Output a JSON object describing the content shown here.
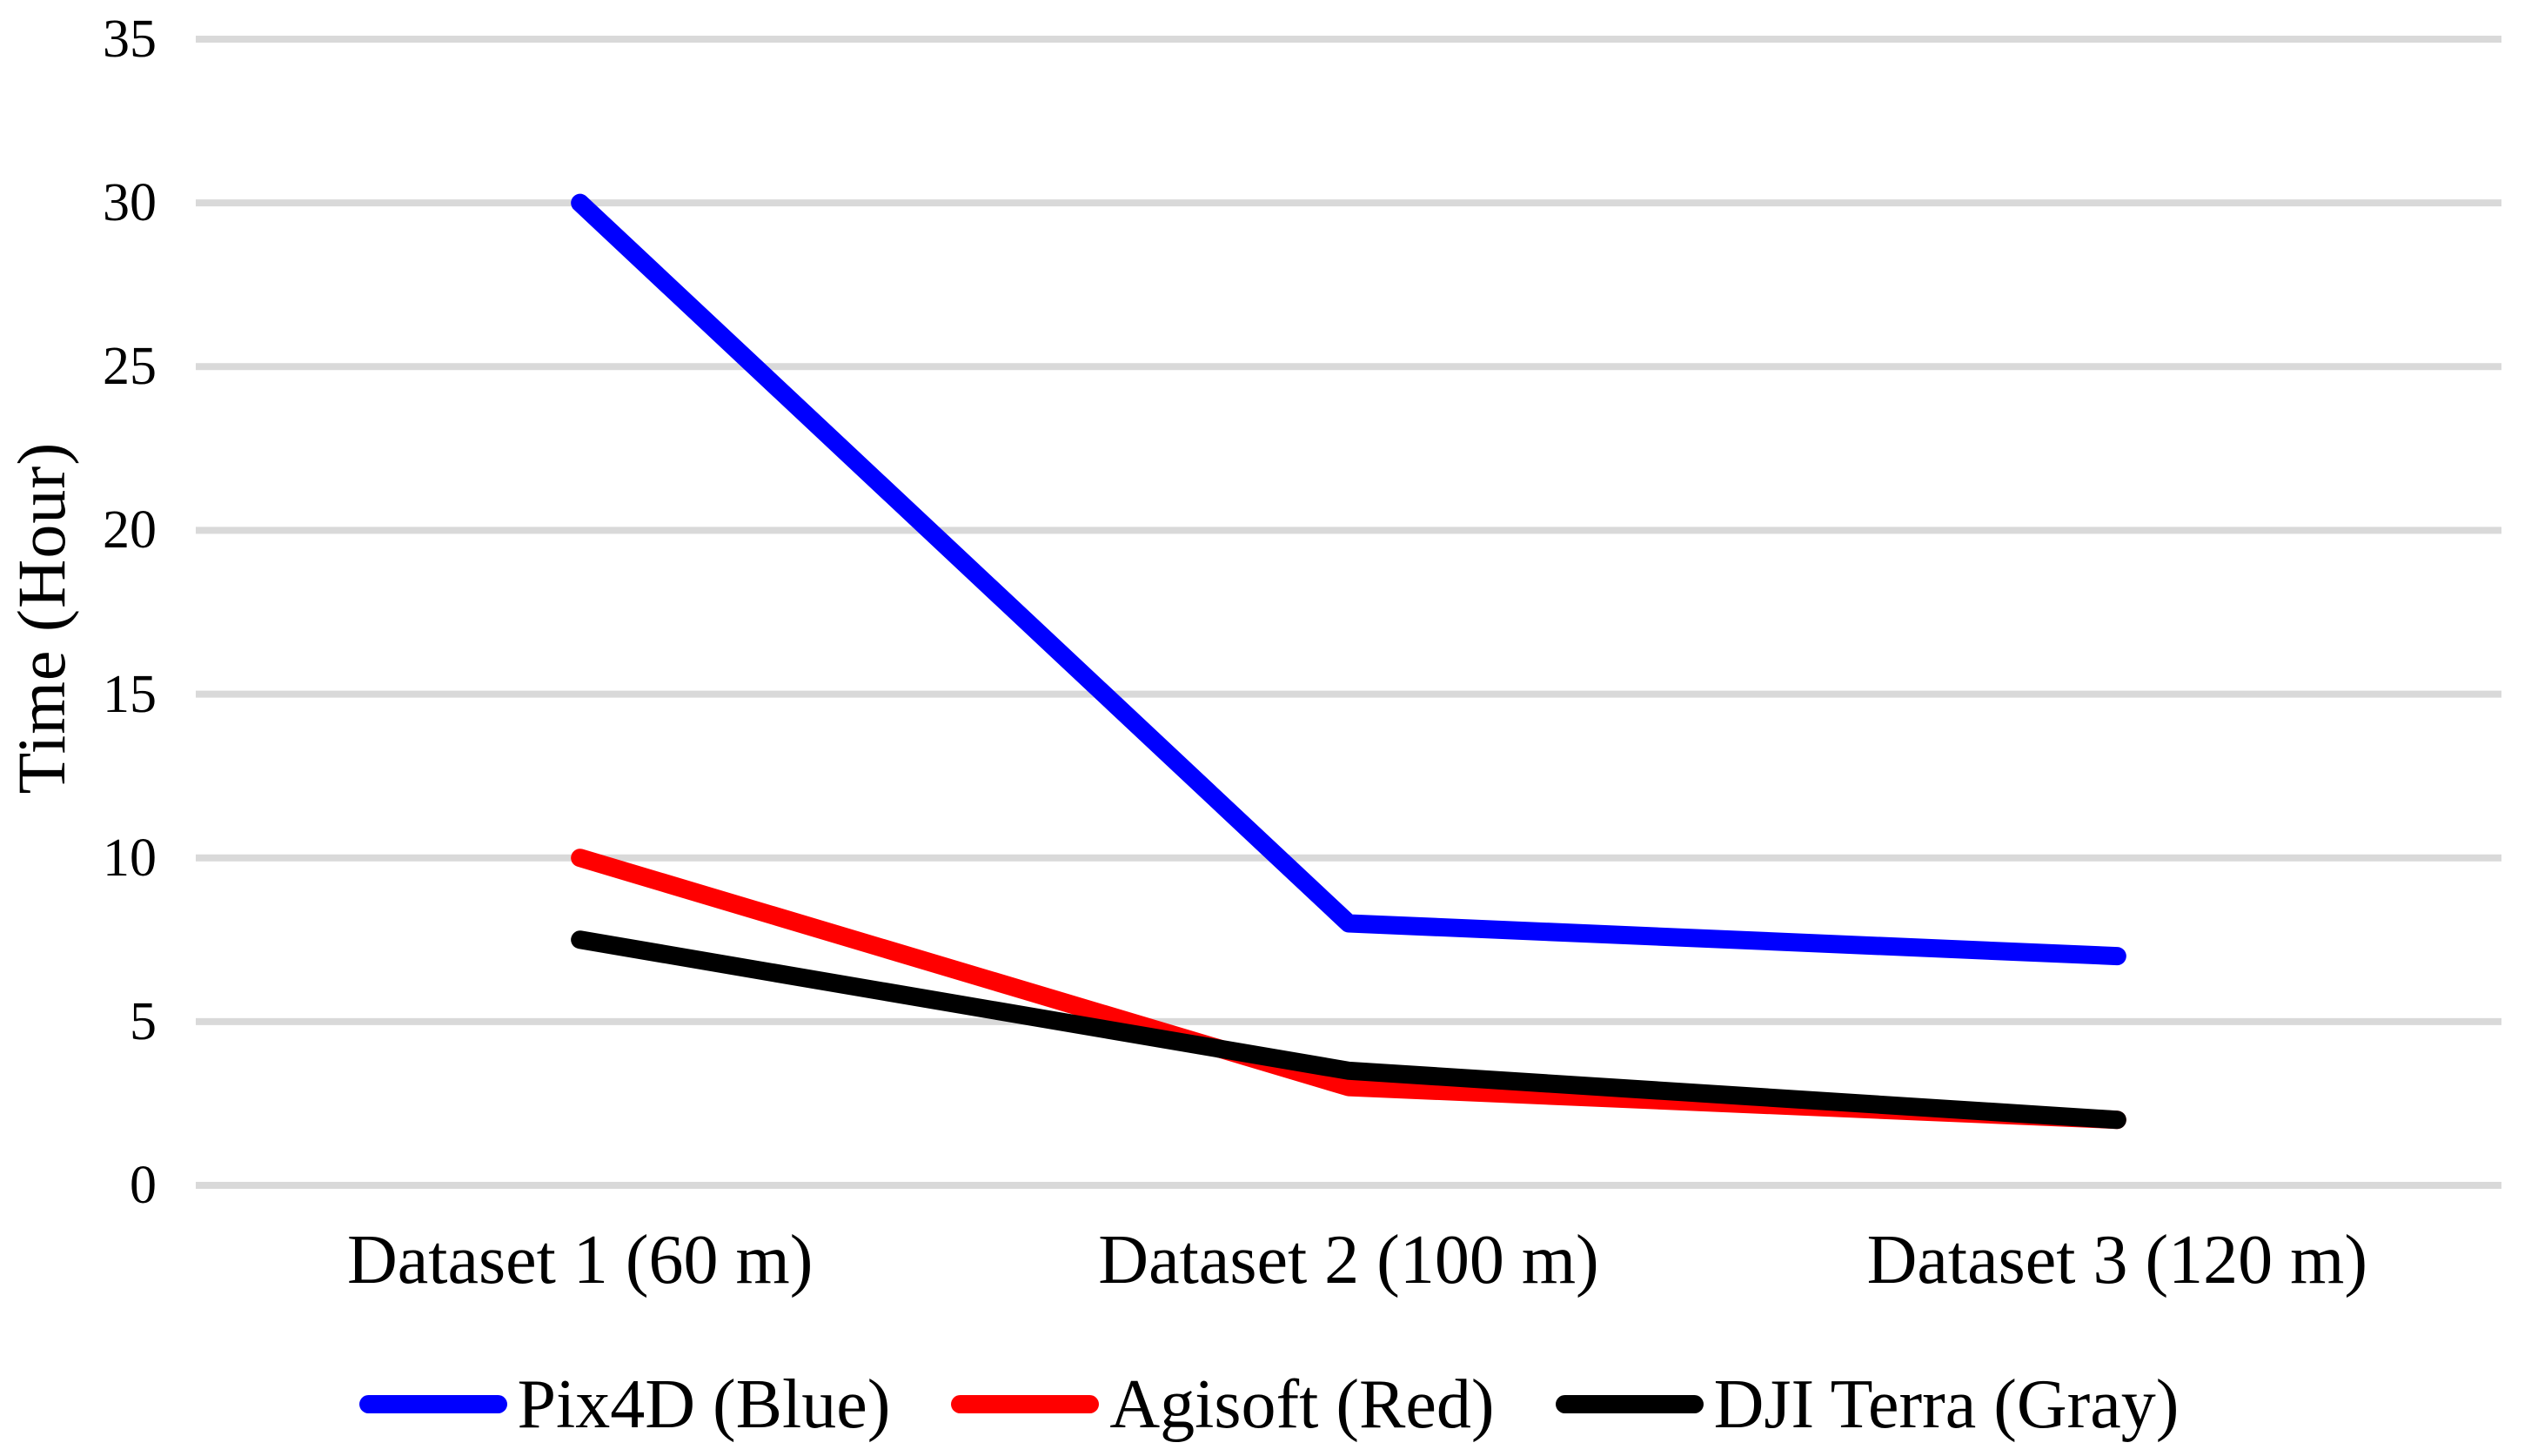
{
  "chart_data": {
    "type": "line",
    "categories": [
      "Dataset 1 (60 m)",
      "Dataset 2 (100 m)",
      "Dataset 3 (120 m)"
    ],
    "series": [
      {
        "name": "Pix4D (Blue)",
        "color": "#0000FF",
        "values": [
          30,
          8,
          7
        ]
      },
      {
        "name": "Agisoft (Red)",
        "color": "#FF0000",
        "values": [
          10,
          3,
          2
        ]
      },
      {
        "name": "DJI Terra (Gray)",
        "color": "#000000",
        "values": [
          7.5,
          3.5,
          2
        ]
      }
    ],
    "title": "",
    "xlabel": "",
    "ylabel": "Time (Hour)",
    "ylim": [
      0,
      35
    ],
    "yticks": [
      0,
      5,
      10,
      15,
      20,
      25,
      30,
      35
    ],
    "grid": "horizontal",
    "gridline_color": "#D9D9D9",
    "background_color": "#FFFFFF",
    "line_width": 21,
    "legend_position": "bottom"
  }
}
